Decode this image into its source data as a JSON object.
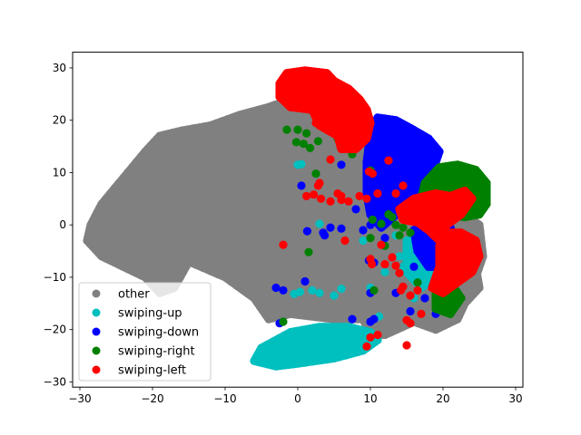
{
  "chart_data": {
    "type": "scatter",
    "title": "",
    "xlabel": "",
    "ylabel": "",
    "xlim": [
      -31,
      31
    ],
    "ylim": [
      -31,
      33
    ],
    "xticks": [
      -30,
      -20,
      -10,
      0,
      10,
      20,
      30
    ],
    "yticks": [
      -30,
      -20,
      -10,
      0,
      10,
      20,
      30
    ],
    "xtick_labels": [
      "−30",
      "−20",
      "−10",
      "0",
      "10",
      "20",
      "30"
    ],
    "ytick_labels": [
      "−30",
      "−20",
      "−10",
      "0",
      "10",
      "20",
      "30"
    ],
    "grid": false,
    "legend_position": "lower-left",
    "series": [
      {
        "name": "other",
        "color": "#808080",
        "regions": [
          {
            "outline": [
              [
                -2,
                23.5
              ],
              [
                5,
                24.5
              ],
              [
                7,
                18
              ],
              [
                10,
                14
              ],
              [
                9,
                4
              ],
              [
                14,
                3
              ],
              [
                16,
                1
              ],
              [
                20,
                -2
              ],
              [
                22.5,
                -6
              ],
              [
                24.5,
                -8
              ],
              [
                25,
                -12
              ],
              [
                23,
                -15
              ],
              [
                22,
                -18
              ],
              [
                19,
                -20
              ],
              [
                16,
                -18.5
              ],
              [
                12,
                -21
              ],
              [
                10,
                -21
              ],
              [
                9,
                -18
              ],
              [
                5,
                -18
              ],
              [
                -1,
                -17
              ],
              [
                -4,
                -18
              ],
              [
                -6,
                -14
              ],
              [
                -10,
                -10
              ],
              [
                -15,
                -7
              ],
              [
                -17,
                -12
              ],
              [
                -19,
                -13
              ],
              [
                -21,
                -10
              ],
              [
                -24,
                -8
              ],
              [
                -27,
                -6
              ],
              [
                -29,
                -3
              ],
              [
                -28.5,
                0
              ],
              [
                -27,
                4
              ],
              [
                -24,
                9
              ],
              [
                -21,
                14
              ],
              [
                -19,
                17
              ],
              [
                -16,
                18
              ],
              [
                -12,
                19
              ],
              [
                -8,
                21
              ],
              [
                -4,
                22.5
              ]
            ],
            "count": 1500
          },
          {
            "outline": [
              [
                17,
                1
              ],
              [
                19,
                3
              ],
              [
                22,
                3
              ],
              [
                25,
                0
              ],
              [
                25.5,
                -6
              ],
              [
                24,
                -12
              ],
              [
                21,
                -16
              ],
              [
                18,
                -13
              ],
              [
                17,
                -5
              ]
            ],
            "count": 260
          }
        ]
      },
      {
        "name": "swiping-up",
        "color": "#00bfbf",
        "regions": [
          {
            "outline": [
              [
                -5,
                -23.5
              ],
              [
                -1,
                -20.5
              ],
              [
                3,
                -19.5
              ],
              [
                7,
                -19.5
              ],
              [
                10,
                -20.5
              ],
              [
                11,
                -22
              ],
              [
                9,
                -24
              ],
              [
                5,
                -25.5
              ],
              [
                0,
                -26.5
              ],
              [
                -3,
                -27
              ],
              [
                -6,
                -26
              ]
            ],
            "count": 550
          },
          {
            "outline": [
              [
                15,
                -3
              ],
              [
                17,
                -3
              ],
              [
                19,
                -6
              ],
              [
                19,
                -10
              ],
              [
                17,
                -12
              ],
              [
                15,
                -9
              ]
            ],
            "count": 35
          }
        ],
        "points": [
          [
            0,
            11.5
          ],
          [
            0.5,
            11.6
          ],
          [
            3,
            0.2
          ],
          [
            13.5,
            -2
          ],
          [
            14,
            -6
          ],
          [
            14.5,
            -8
          ],
          [
            15.5,
            -9.5
          ],
          [
            9,
            -3
          ],
          [
            2,
            -12.5
          ],
          [
            3,
            -13
          ],
          [
            5,
            -13.5
          ],
          [
            6,
            -12.2
          ],
          [
            -0.5,
            -13.2
          ],
          [
            0.3,
            -12.8
          ],
          [
            11.2,
            -17.5
          ],
          [
            10,
            -12
          ],
          [
            12,
            -9
          ],
          [
            16,
            -14
          ]
        ]
      },
      {
        "name": "swiping-down",
        "color": "#0000ff",
        "regions": [
          {
            "outline": [
              [
                10,
                17.5
              ],
              [
                11,
                20.5
              ],
              [
                13.5,
                20
              ],
              [
                15.5,
                18.5
              ],
              [
                18,
                16.5
              ],
              [
                19.5,
                14
              ],
              [
                18.5,
                10
              ],
              [
                16.5,
                6
              ],
              [
                14,
                2.5
              ],
              [
                11.5,
                -0.5
              ],
              [
                10,
                2
              ],
              [
                9.5,
                6
              ],
              [
                9.5,
                12
              ]
            ],
            "count": 500
          },
          {
            "outline": [
              [
                16,
                -1
              ],
              [
                18,
                0.5
              ],
              [
                21,
                -0.5
              ],
              [
                22,
                -4
              ],
              [
                20.5,
                -8
              ],
              [
                18,
                -8
              ],
              [
                16.5,
                -5
              ]
            ],
            "count": 70
          }
        ],
        "points": [
          [
            0.5,
            7.5
          ],
          [
            6,
            11.5
          ],
          [
            3.5,
            -1.5
          ],
          [
            3.7,
            -2
          ],
          [
            4.5,
            -0.5
          ],
          [
            8,
            3
          ],
          [
            10,
            0
          ],
          [
            9.8,
            -6.8
          ],
          [
            10.5,
            -7.2
          ],
          [
            1,
            -10.8
          ],
          [
            -3,
            -12
          ],
          [
            -2,
            -12.5
          ],
          [
            -2.5,
            -18.8
          ],
          [
            7.5,
            -18
          ],
          [
            10,
            -18.5
          ],
          [
            10.5,
            -18
          ],
          [
            10,
            -13
          ],
          [
            13.5,
            -13
          ],
          [
            17.5,
            -14
          ],
          [
            19,
            -17
          ],
          [
            15.5,
            -16.5
          ],
          [
            16,
            -8
          ],
          [
            12,
            -2.5
          ],
          [
            6,
            -0.7
          ],
          [
            9,
            -1
          ],
          [
            1.3,
            -1.2
          ]
        ]
      },
      {
        "name": "swiping-right",
        "color": "#008000",
        "regions": [
          {
            "outline": [
              [
                17.5,
                8
              ],
              [
                19.5,
                11
              ],
              [
                22,
                11.5
              ],
              [
                24.5,
                10.5
              ],
              [
                26,
                8
              ],
              [
                26,
                4
              ],
              [
                25,
                2
              ],
              [
                23,
                1.5
              ],
              [
                20.5,
                2
              ],
              [
                18.5,
                3
              ],
              [
                17,
                5
              ]
            ],
            "count": 380
          },
          {
            "outline": [
              [
                19,
                -12
              ],
              [
                21,
                -11
              ],
              [
                22.5,
                -14
              ],
              [
                21,
                -17
              ],
              [
                19,
                -16
              ]
            ],
            "count": 25
          }
        ],
        "points": [
          [
            -1.5,
            18.2
          ],
          [
            0,
            18.2
          ],
          [
            -0.2,
            15.8
          ],
          [
            0.8,
            15.5
          ],
          [
            1.7,
            14.7
          ],
          [
            1.2,
            17.5
          ],
          [
            2.8,
            16
          ],
          [
            2.5,
            9.8
          ],
          [
            5.5,
            16.5
          ],
          [
            7.5,
            13.5
          ],
          [
            10,
            10.4
          ],
          [
            10.3,
            1
          ],
          [
            12.5,
            2
          ],
          [
            13,
            1.5
          ],
          [
            13.5,
            0
          ],
          [
            14.5,
            -0.5
          ],
          [
            15.5,
            -1.5
          ],
          [
            12,
            -4
          ],
          [
            10,
            -2.5
          ],
          [
            10.5,
            -12.5
          ],
          [
            1.5,
            -5.2
          ],
          [
            -2,
            -18.5
          ],
          [
            14,
            -2
          ],
          [
            11.5,
            0.2
          ],
          [
            16.5,
            -11
          ]
        ]
      },
      {
        "name": "swiping-left",
        "color": "#ff0000",
        "regions": [
          {
            "outline": [
              [
                -2.5,
                27
              ],
              [
                -1.5,
                29
              ],
              [
                1,
                29.5
              ],
              [
                4,
                29
              ],
              [
                5,
                27.5
              ],
              [
                7,
                26
              ],
              [
                8.5,
                24
              ],
              [
                9.5,
                22
              ],
              [
                10,
                19.5
              ],
              [
                9.5,
                16.5
              ],
              [
                8,
                14.5
              ],
              [
                6,
                14.5
              ],
              [
                5.5,
                17
              ],
              [
                3,
                19
              ],
              [
                2,
                22
              ],
              [
                -1,
                22.5
              ],
              [
                -2.5,
                24.5
              ]
            ],
            "count": 420
          },
          {
            "outline": [
              [
                14,
                3
              ],
              [
                16,
                5
              ],
              [
                19,
                6
              ],
              [
                21,
                5.5
              ],
              [
                23,
                6.5
              ],
              [
                24,
                5
              ],
              [
                22.5,
                2
              ],
              [
                20.5,
                0
              ],
              [
                19.5,
                -3
              ],
              [
                18,
                -1
              ],
              [
                16.5,
                0.5
              ],
              [
                14.5,
                1
              ]
            ],
            "count": 120
          },
          {
            "outline": [
              [
                19.5,
                -4
              ],
              [
                20.5,
                -1.5
              ],
              [
                22.5,
                -1.5
              ],
              [
                24.5,
                -3
              ],
              [
                25,
                -6
              ],
              [
                24,
                -9
              ],
              [
                22,
                -11
              ],
              [
                20,
                -13
              ],
              [
                18.5,
                -12
              ],
              [
                19.5,
                -8
              ]
            ],
            "count": 150
          }
        ],
        "points": [
          [
            -2,
            -3.8
          ],
          [
            1.2,
            5.5
          ],
          [
            2.8,
            7.5
          ],
          [
            3,
            8
          ],
          [
            2.2,
            5.8
          ],
          [
            3.2,
            5
          ],
          [
            4.5,
            4.5
          ],
          [
            5.5,
            6
          ],
          [
            6,
            5.5
          ],
          [
            6,
            4.8
          ],
          [
            7,
            4.5
          ],
          [
            8.5,
            5.5
          ],
          [
            9.5,
            5
          ],
          [
            9.8,
            10.2
          ],
          [
            10.3,
            9.8
          ],
          [
            11,
            6
          ],
          [
            13.5,
            6
          ],
          [
            14.5,
            7.5
          ],
          [
            12.5,
            12.3
          ],
          [
            4.5,
            12.5
          ],
          [
            2.5,
            19.5
          ],
          [
            7,
            18
          ],
          [
            6.5,
            -3
          ],
          [
            11.5,
            -3.8
          ],
          [
            10,
            -6.5
          ],
          [
            10.2,
            -7.5
          ],
          [
            12,
            -7.5
          ],
          [
            13,
            -6.2
          ],
          [
            13.5,
            -7.8
          ],
          [
            14,
            -9.2
          ],
          [
            14.5,
            -11.8
          ],
          [
            14.2,
            -12.5
          ],
          [
            15.5,
            -13.5
          ],
          [
            16.5,
            -12.5
          ],
          [
            15,
            -18.2
          ],
          [
            15.5,
            -18.8
          ],
          [
            15,
            -23
          ],
          [
            10,
            -21.5
          ],
          [
            11,
            -21
          ],
          [
            9.5,
            -23.2
          ],
          [
            17,
            -17
          ]
        ]
      }
    ]
  }
}
